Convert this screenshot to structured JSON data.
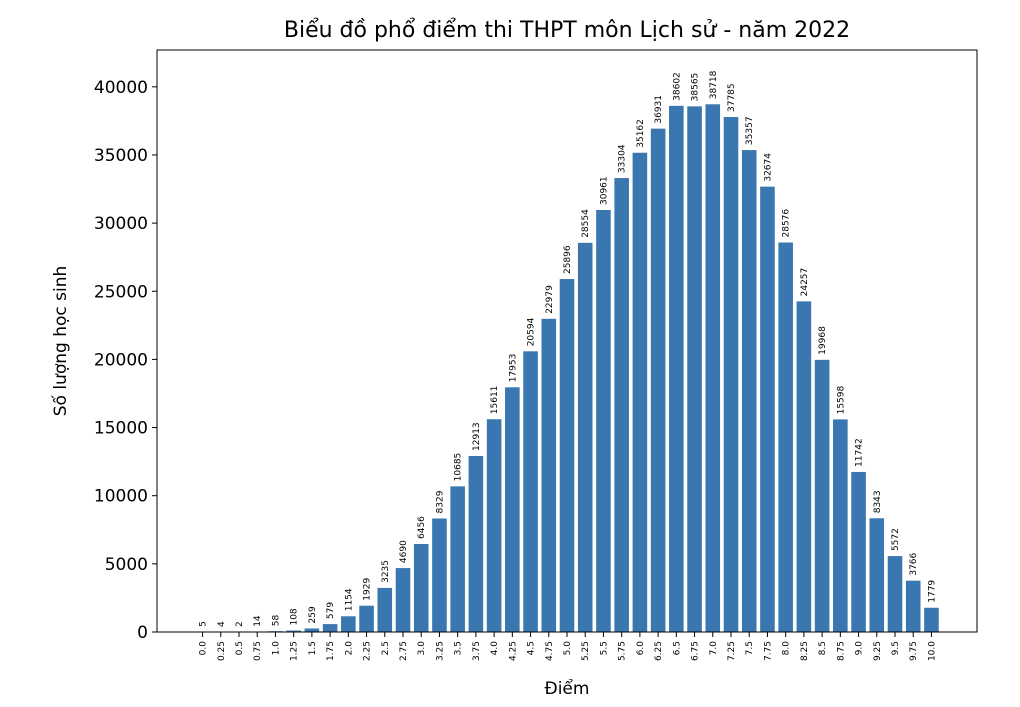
{
  "chart_data": {
    "type": "bar",
    "title": "Biểu đồ phổ điểm thi THPT môn Lịch sử - năm 2022",
    "xlabel": "Điểm",
    "ylabel": "Số lượng học sinh",
    "categories": [
      "0.0",
      "0.25",
      "0.5",
      "0.75",
      "1.0",
      "1.25",
      "1.5",
      "1.75",
      "2.0",
      "2.25",
      "2.5",
      "2.75",
      "3.0",
      "3.25",
      "3.5",
      "3.75",
      "4.0",
      "4.25",
      "4.5",
      "4.75",
      "5.0",
      "5.25",
      "5.5",
      "5.75",
      "6.0",
      "6.25",
      "6.5",
      "6.75",
      "7.0",
      "7.25",
      "7.5",
      "7.75",
      "8.0",
      "8.25",
      "8.5",
      "8.75",
      "9.0",
      "9.25",
      "9.5",
      "9.75",
      "10.0"
    ],
    "values": [
      5,
      4,
      2,
      14,
      58,
      108,
      259,
      579,
      1154,
      1929,
      3235,
      4690,
      6456,
      8329,
      10685,
      12913,
      15611,
      17953,
      20594,
      22979,
      25896,
      28554,
      30961,
      33304,
      35162,
      36931,
      38602,
      38565,
      38718,
      37785,
      35357,
      32674,
      28576,
      24257,
      19968,
      15598,
      11742,
      8343,
      5572,
      3766,
      1779
    ],
    "color": "#3a76af",
    "ylim": [
      0,
      42700
    ],
    "yticks": [
      0,
      5000,
      10000,
      15000,
      20000,
      25000,
      30000,
      35000,
      40000
    ]
  }
}
